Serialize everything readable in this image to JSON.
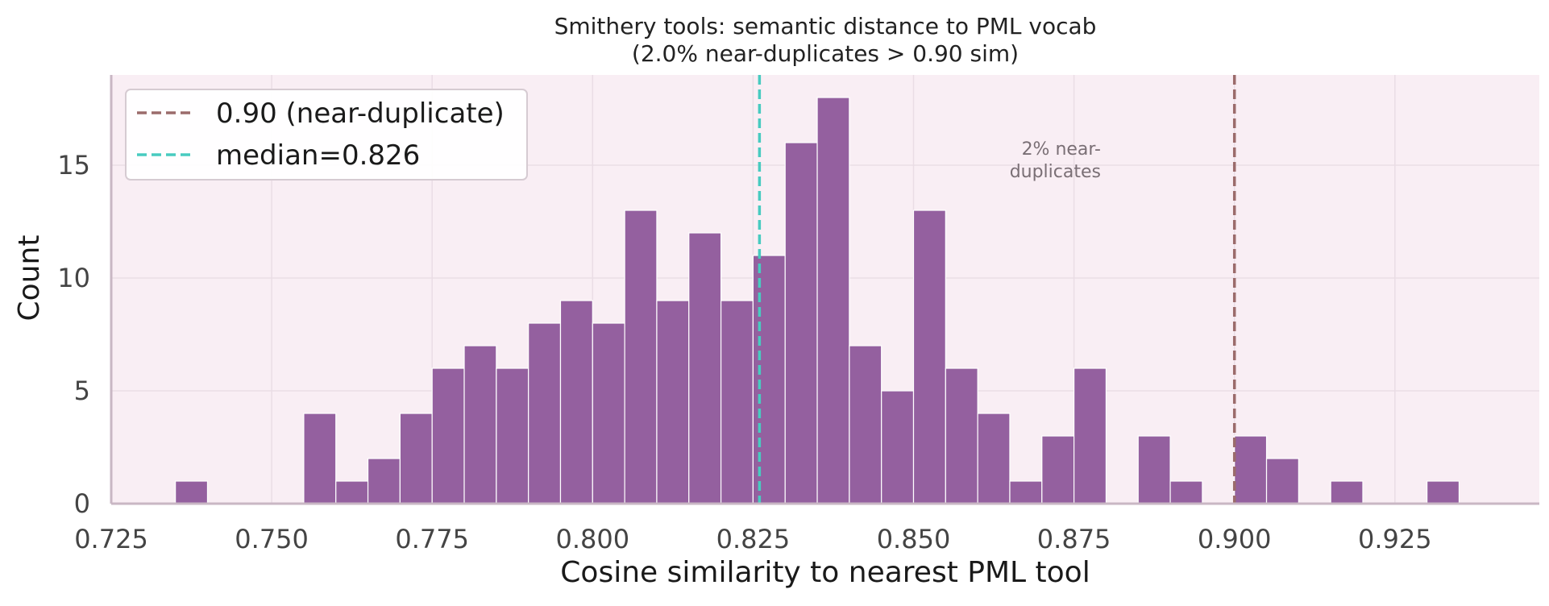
{
  "chart_data": {
    "type": "bar",
    "title": "Smithery tools: semantic distance to PML vocab",
    "subtitle": "(2.0% near-duplicates > 0.90 sim)",
    "xlabel": "Cosine similarity to nearest PML tool",
    "ylabel": "Count",
    "xlim": [
      0.725,
      0.9475
    ],
    "ylim": [
      0,
      19
    ],
    "bin_width": 0.005,
    "xticks": [
      0.725,
      0.75,
      0.775,
      0.8,
      0.825,
      0.85,
      0.875,
      0.9,
      0.925
    ],
    "xtick_labels": [
      "0.725",
      "0.750",
      "0.775",
      "0.800",
      "0.825",
      "0.850",
      "0.875",
      "0.900",
      "0.925"
    ],
    "yticks": [
      0,
      5,
      10,
      15
    ],
    "ytick_labels": [
      "0",
      "5",
      "10",
      "15"
    ],
    "grid": true,
    "legend_position": "top-left",
    "bar_color": "#94609f",
    "background_color": "#f9eef4",
    "bins": [
      {
        "x0": 0.735,
        "count": 1
      },
      {
        "x0": 0.755,
        "count": 4
      },
      {
        "x0": 0.76,
        "count": 1
      },
      {
        "x0": 0.765,
        "count": 2
      },
      {
        "x0": 0.77,
        "count": 4
      },
      {
        "x0": 0.775,
        "count": 6
      },
      {
        "x0": 0.78,
        "count": 7
      },
      {
        "x0": 0.785,
        "count": 6
      },
      {
        "x0": 0.79,
        "count": 8
      },
      {
        "x0": 0.795,
        "count": 9
      },
      {
        "x0": 0.8,
        "count": 8
      },
      {
        "x0": 0.805,
        "count": 13
      },
      {
        "x0": 0.81,
        "count": 9
      },
      {
        "x0": 0.815,
        "count": 12
      },
      {
        "x0": 0.82,
        "count": 9
      },
      {
        "x0": 0.825,
        "count": 11
      },
      {
        "x0": 0.83,
        "count": 16
      },
      {
        "x0": 0.835,
        "count": 18
      },
      {
        "x0": 0.84,
        "count": 7
      },
      {
        "x0": 0.845,
        "count": 5
      },
      {
        "x0": 0.85,
        "count": 13
      },
      {
        "x0": 0.855,
        "count": 6
      },
      {
        "x0": 0.86,
        "count": 4
      },
      {
        "x0": 0.865,
        "count": 1
      },
      {
        "x0": 0.87,
        "count": 3
      },
      {
        "x0": 0.875,
        "count": 6
      },
      {
        "x0": 0.885,
        "count": 3
      },
      {
        "x0": 0.89,
        "count": 1
      },
      {
        "x0": 0.9,
        "count": 3
      },
      {
        "x0": 0.905,
        "count": 2
      },
      {
        "x0": 0.915,
        "count": 1
      },
      {
        "x0": 0.93,
        "count": 1
      }
    ],
    "reference_lines": [
      {
        "x": 0.9,
        "label": "0.90 (near-duplicate)",
        "color": "#9b6b6b",
        "style": "dashed"
      },
      {
        "x": 0.826,
        "label": "median=0.826",
        "color": "#48cbc0",
        "style": "dashed"
      }
    ],
    "annotation": {
      "lines": [
        "2% near-",
        "duplicates"
      ],
      "x": 0.8635,
      "y": 15
    }
  }
}
